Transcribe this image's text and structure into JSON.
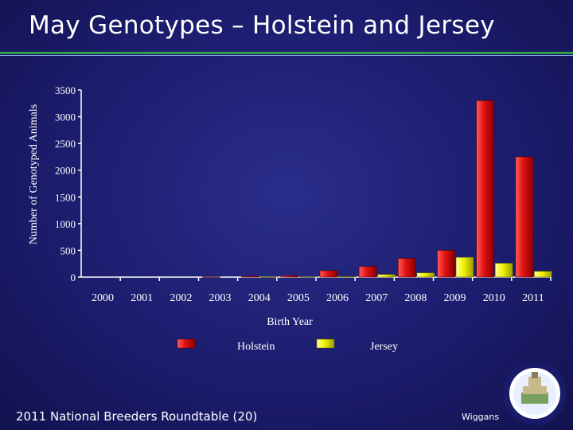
{
  "slide": {
    "title": "May Genotypes – Holstein and Jersey",
    "footer_left": "2011 National Breeders Roundtable (20)",
    "footer_right": "Wiggans"
  },
  "colors": {
    "holstein": "#e01010",
    "jersey": "#f0f000",
    "background": "#1c1d6e",
    "rule_green": "#2e9e4a"
  },
  "chart_data": {
    "type": "bar",
    "title": "",
    "xlabel": "Birth Year",
    "ylabel": "Number of Genotyped Animals",
    "ylim": [
      0,
      3500
    ],
    "yticks": [
      0,
      500,
      1000,
      1500,
      2000,
      2500,
      3000,
      3500
    ],
    "categories": [
      "2000",
      "2001",
      "2002",
      "2003",
      "2004",
      "2005",
      "2006",
      "2007",
      "2008",
      "2009",
      "2010",
      "2011"
    ],
    "series": [
      {
        "name": "Holstein",
        "values": [
          0,
          0,
          0,
          3,
          15,
          25,
          120,
          200,
          350,
          500,
          3300,
          2250
        ]
      },
      {
        "name": "Jersey",
        "values": [
          0,
          0,
          0,
          0,
          2,
          5,
          10,
          50,
          80,
          370,
          260,
          110
        ]
      }
    ],
    "legend": "bottom-center",
    "grid": false
  }
}
